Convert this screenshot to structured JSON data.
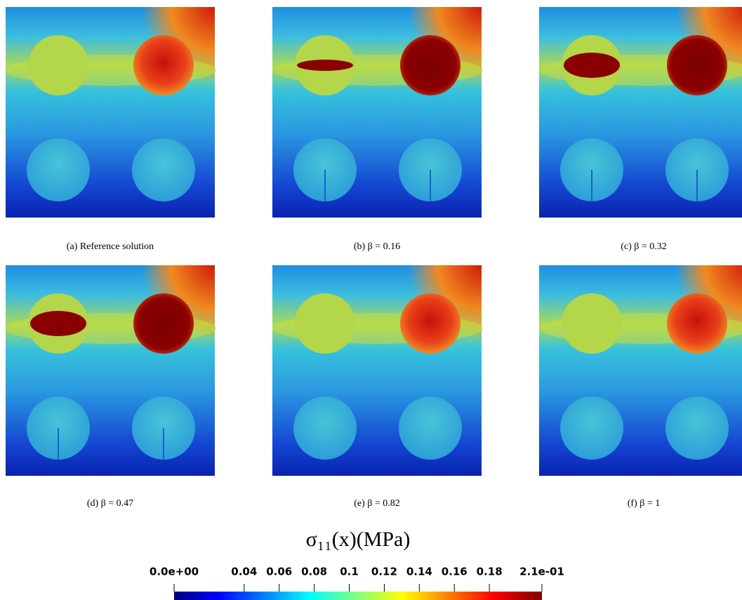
{
  "panels": [
    {
      "caption": "(a) Reference solution"
    },
    {
      "caption": "(b) β = 0.16"
    },
    {
      "caption": "(c) β = 0.32"
    },
    {
      "caption": "(d) β = 0.47"
    },
    {
      "caption": "(e) β = 0.82"
    },
    {
      "caption": "(f) β = 1"
    }
  ],
  "colorbar": {
    "title": "σ₁₁(x)(MPa)",
    "range": [
      0,
      0.21
    ],
    "ticks": [
      {
        "value": 0,
        "label": "0.0e+00"
      },
      0.04,
      0.06,
      0.08,
      0.1,
      0.12,
      0.14,
      0.16,
      0.18,
      {
        "value": 0.21,
        "label": "2.1e-01"
      }
    ]
  }
}
